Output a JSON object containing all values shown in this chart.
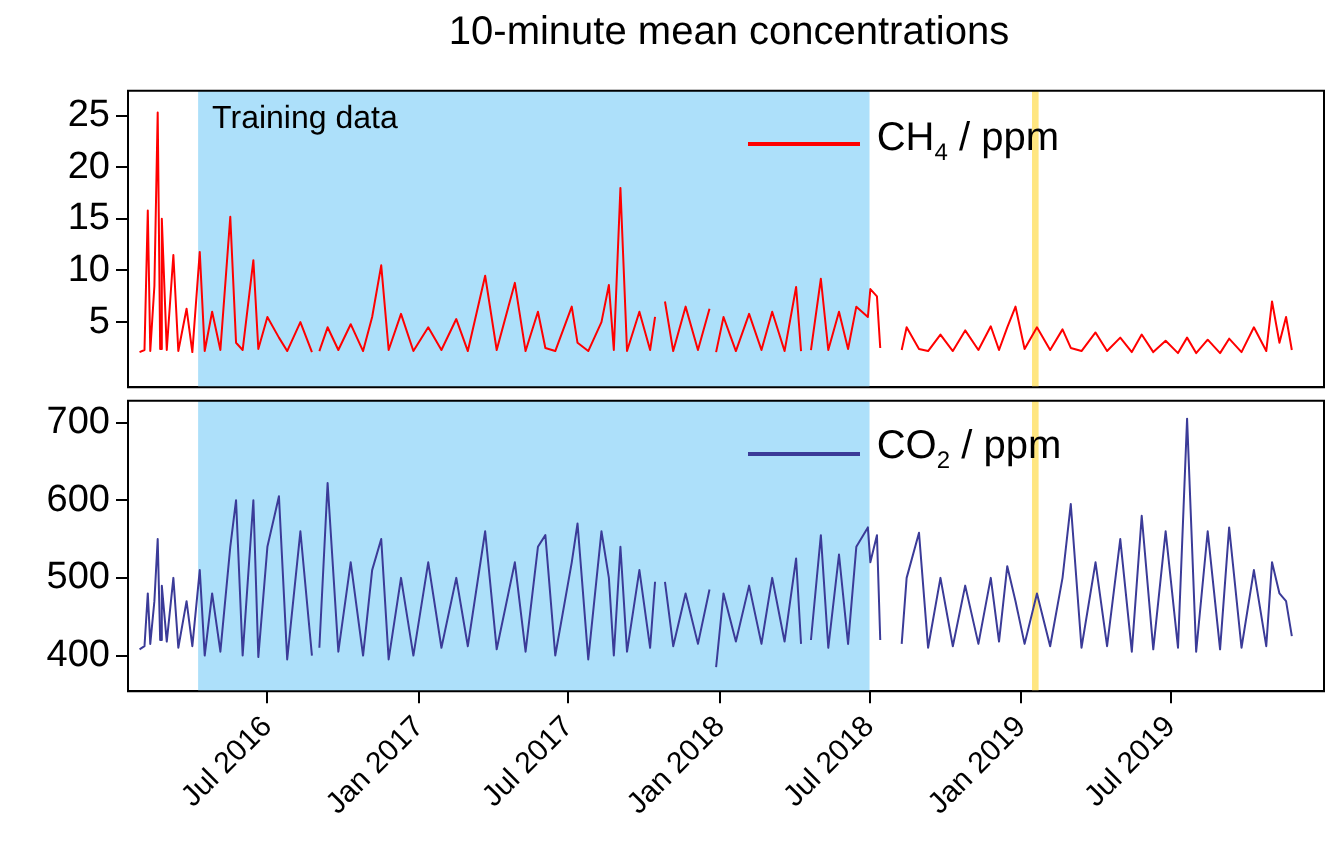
{
  "chart_data": [
    {
      "type": "line",
      "title": "10-minute mean concentrations",
      "tick_labels": "y",
      "grid": false,
      "legend": "top right",
      "marker": "none",
      "line_style": "solid",
      "xlim": [
        "2016-01-14",
        "2020-01-03"
      ],
      "ylim": [
        -1.3,
        27.4
      ],
      "yticks": [
        5,
        10,
        15,
        20,
        25
      ],
      "bands": [
        {
          "axis": "x",
          "from": "2016-04-08",
          "to": "2018-07-01",
          "label": "Training data",
          "color": "#ade0fa"
        },
        {
          "axis": "x",
          "from": "2019-01-14",
          "to": "2019-01-22",
          "color": "#ffe680"
        }
      ],
      "x": [
        "2016-01-28",
        "2016-02-03",
        "2016-02-07",
        "2016-02-10",
        "2016-02-15",
        "2016-02-19",
        "2016-02-22",
        "2016-02-24",
        "2016-03-01",
        "2016-03-09",
        "2016-03-15",
        "2016-03-25",
        "2016-04-01",
        "2016-04-10",
        "2016-04-16",
        "2016-04-25",
        "2016-05-05",
        "2016-05-17",
        "2016-05-24",
        "2016-06-01",
        "2016-06-14",
        "2016-06-20",
        "2016-07-01",
        "2016-07-15",
        "2016-07-25",
        "2016-08-10",
        "2016-08-24",
        "2016-08-28",
        "2016-09-02",
        "2016-09-12",
        "2016-09-25",
        "2016-10-10",
        "2016-10-25",
        "2016-11-05",
        "2016-11-16",
        "2016-11-25",
        "2016-12-10",
        "2016-12-25",
        "2017-01-12",
        "2017-01-28",
        "2017-02-15",
        "2017-03-01",
        "2017-03-22",
        "2017-04-05",
        "2017-04-27",
        "2017-05-10",
        "2017-05-25",
        "2017-06-03",
        "2017-06-15",
        "2017-07-05",
        "2017-07-12",
        "2017-07-25",
        "2017-08-10",
        "2017-08-19",
        "2017-08-25",
        "2017-09-02",
        "2017-09-10",
        "2017-09-25",
        "2017-10-08",
        "2017-10-14",
        "2017-10-20",
        "2017-10-26",
        "2017-11-05",
        "2017-11-20",
        "2017-12-05",
        "2017-12-19",
        "2017-12-22",
        "2017-12-27",
        "2018-01-05",
        "2018-01-20",
        "2018-02-05",
        "2018-02-20",
        "2018-03-05",
        "2018-03-20",
        "2018-04-03",
        "2018-04-09",
        "2018-04-15",
        "2018-04-21",
        "2018-05-03",
        "2018-05-12",
        "2018-05-25",
        "2018-06-05",
        "2018-06-15",
        "2018-06-29",
        "2018-07-02",
        "2018-07-10",
        "2018-07-14",
        "2018-07-25",
        "2018-08-09",
        "2018-08-15",
        "2018-08-30",
        "2018-09-10",
        "2018-09-25",
        "2018-10-10",
        "2018-10-25",
        "2018-11-10",
        "2018-11-25",
        "2018-12-05",
        "2018-12-15",
        "2018-12-25",
        "2019-01-05",
        "2019-01-20",
        "2019-02-05",
        "2019-02-20",
        "2019-03-02",
        "2019-03-15",
        "2019-04-01",
        "2019-04-15",
        "2019-05-01",
        "2019-05-15",
        "2019-05-27",
        "2019-06-10",
        "2019-06-25",
        "2019-07-10",
        "2019-07-21",
        "2019-08-01",
        "2019-08-15",
        "2019-08-30",
        "2019-09-10",
        "2019-09-25",
        "2019-10-10",
        "2019-10-25",
        "2019-11-01",
        "2019-11-10",
        "2019-11-18",
        "2019-11-25"
      ],
      "series": [
        {
          "name": "CH$_{4}$ / ppm",
          "color": "#ff0000",
          "values": [
            2.1,
            2.3,
            15.8,
            2.2,
            8.5,
            25.3,
            2.4,
            15,
            2.3,
            11.5,
            2.2,
            6.3,
            2.1,
            11.8,
            2.2,
            6,
            2.3,
            15.2,
            3,
            2.3,
            11,
            2.4,
            5.5,
            3.5,
            2.2,
            5,
            2.1,
            null,
            2.2,
            4.5,
            2.3,
            4.8,
            2.2,
            5.5,
            10.5,
            2.3,
            5.8,
            2.2,
            4.5,
            2.3,
            5.3,
            2.2,
            9.5,
            2.3,
            8.8,
            2.2,
            6,
            2.5,
            2.2,
            6.5,
            3,
            2.2,
            5,
            8.6,
            2.3,
            18,
            2.2,
            6,
            2.3,
            5.5,
            null,
            7,
            2.2,
            6.5,
            2.3,
            6.3,
            null,
            2.1,
            5.5,
            2.2,
            5.8,
            2.3,
            6,
            2.2,
            8.4,
            2.2,
            null,
            2.3,
            9.2,
            2.3,
            6,
            2.4,
            6.5,
            5.5,
            8.2,
            7.5,
            2.5,
            null,
            2.3,
            4.5,
            2.4,
            2.2,
            3.8,
            2.2,
            4.2,
            2.3,
            4.6,
            2.3,
            4.5,
            6.5,
            2.4,
            4.5,
            2.3,
            4.3,
            2.5,
            2.2,
            4,
            2.2,
            3.5,
            2.1,
            3.8,
            2.1,
            3.2,
            2,
            3.5,
            2,
            3.3,
            2,
            3.4,
            2.1,
            4.5,
            2.2,
            7,
            3,
            5.5,
            2.3
          ]
        }
      ]
    },
    {
      "type": "line",
      "grid": false,
      "legend": "top right",
      "marker": "none",
      "line_style": "solid",
      "xlim": [
        "2016-01-14",
        "2020-01-03"
      ],
      "xticks": [
        {
          "value": "2016-07",
          "label": "Jul 2016"
        },
        {
          "value": "2017-01",
          "label": "Jan 2017"
        },
        {
          "value": "2017-07",
          "label": "Jul 2017"
        },
        {
          "value": "2018-01",
          "label": "Jan 2018"
        },
        {
          "value": "2018-07",
          "label": "Jul 2018"
        },
        {
          "value": "2019-01",
          "label": "Jan 2019"
        },
        {
          "value": "2019-07",
          "label": "Jul 2019"
        }
      ],
      "ylim": [
        354,
        728
      ],
      "yticks": [
        400,
        500,
        600,
        700
      ],
      "bands": [
        {
          "axis": "x",
          "from": "2016-04-08",
          "to": "2018-07-01",
          "color": "#ade0fa"
        },
        {
          "axis": "x",
          "from": "2019-01-14",
          "to": "2019-01-22",
          "color": "#ffe680"
        }
      ],
      "x": [
        "2016-01-28",
        "2016-02-03",
        "2016-02-07",
        "2016-02-10",
        "2016-02-15",
        "2016-02-19",
        "2016-02-22",
        "2016-02-24",
        "2016-03-01",
        "2016-03-09",
        "2016-03-15",
        "2016-03-25",
        "2016-04-01",
        "2016-04-10",
        "2016-04-16",
        "2016-04-25",
        "2016-05-05",
        "2016-05-17",
        "2016-05-24",
        "2016-06-01",
        "2016-06-14",
        "2016-06-20",
        "2016-07-01",
        "2016-07-15",
        "2016-07-25",
        "2016-08-10",
        "2016-08-24",
        "2016-08-28",
        "2016-09-02",
        "2016-09-12",
        "2016-09-25",
        "2016-10-10",
        "2016-10-25",
        "2016-11-05",
        "2016-11-16",
        "2016-11-25",
        "2016-12-10",
        "2016-12-25",
        "2017-01-12",
        "2017-01-28",
        "2017-02-15",
        "2017-03-01",
        "2017-03-22",
        "2017-04-05",
        "2017-04-27",
        "2017-05-10",
        "2017-05-25",
        "2017-06-03",
        "2017-06-15",
        "2017-07-05",
        "2017-07-12",
        "2017-07-25",
        "2017-08-10",
        "2017-08-19",
        "2017-08-25",
        "2017-09-02",
        "2017-09-10",
        "2017-09-25",
        "2017-10-08",
        "2017-10-14",
        "2017-10-20",
        "2017-10-26",
        "2017-11-05",
        "2017-11-20",
        "2017-12-05",
        "2017-12-19",
        "2017-12-22",
        "2017-12-27",
        "2018-01-05",
        "2018-01-20",
        "2018-02-05",
        "2018-02-20",
        "2018-03-05",
        "2018-03-20",
        "2018-04-03",
        "2018-04-09",
        "2018-04-15",
        "2018-04-21",
        "2018-05-03",
        "2018-05-12",
        "2018-05-25",
        "2018-06-05",
        "2018-06-15",
        "2018-06-29",
        "2018-07-02",
        "2018-07-10",
        "2018-07-14",
        "2018-07-25",
        "2018-08-09",
        "2018-08-15",
        "2018-08-30",
        "2018-09-10",
        "2018-09-25",
        "2018-10-10",
        "2018-10-25",
        "2018-11-10",
        "2018-11-25",
        "2018-12-05",
        "2018-12-15",
        "2018-12-25",
        "2019-01-05",
        "2019-01-20",
        "2019-02-05",
        "2019-02-20",
        "2019-03-02",
        "2019-03-15",
        "2019-04-01",
        "2019-04-15",
        "2019-05-01",
        "2019-05-15",
        "2019-05-27",
        "2019-06-10",
        "2019-06-25",
        "2019-07-10",
        "2019-07-21",
        "2019-08-01",
        "2019-08-15",
        "2019-08-30",
        "2019-09-10",
        "2019-09-25",
        "2019-10-10",
        "2019-10-25",
        "2019-11-01",
        "2019-11-10",
        "2019-11-18",
        "2019-11-25"
      ],
      "series": [
        {
          "name": "CO$_{2}$ / ppm",
          "color": "#3b3b98",
          "values": [
            408,
            412,
            480,
            415,
            470,
            550,
            420,
            490,
            418,
            500,
            410,
            470,
            412,
            510,
            400,
            480,
            405,
            540,
            600,
            400,
            600,
            398,
            540,
            605,
            395,
            560,
            400,
            null,
            410,
            622,
            405,
            520,
            400,
            510,
            550,
            395,
            500,
            400,
            520,
            410,
            500,
            412,
            560,
            408,
            520,
            405,
            540,
            555,
            400,
            520,
            570,
            395,
            560,
            500,
            400,
            540,
            405,
            510,
            410,
            495,
            null,
            495,
            412,
            480,
            415,
            485,
            null,
            385,
            480,
            418,
            490,
            415,
            500,
            418,
            525,
            415,
            null,
            420,
            555,
            410,
            530,
            415,
            540,
            565,
            520,
            555,
            420,
            null,
            415,
            500,
            558,
            410,
            500,
            412,
            490,
            415,
            500,
            418,
            515,
            470,
            415,
            480,
            412,
            500,
            595,
            410,
            520,
            412,
            550,
            405,
            580,
            408,
            560,
            410,
            705,
            405,
            560,
            408,
            565,
            410,
            510,
            412,
            520,
            480,
            470,
            425
          ]
        }
      ]
    }
  ]
}
